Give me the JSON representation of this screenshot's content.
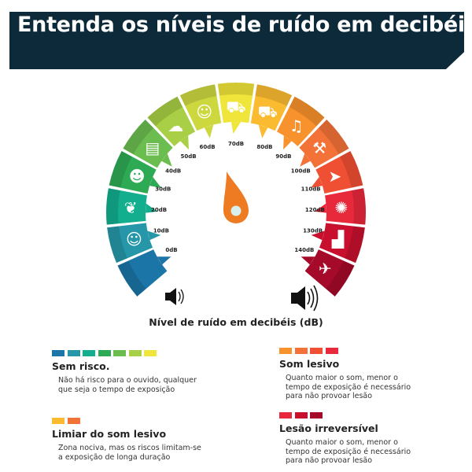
{
  "title": "Entenda os níveis de ruído em decibéis",
  "subtitle": "Nível de ruído em decibéis (dB)",
  "gauge": {
    "segments": [
      {
        "label": "0dB",
        "color": "#1b75a6",
        "icon": ""
      },
      {
        "label": "10dB",
        "color": "#2597a8",
        "icon": "whisper-icon"
      },
      {
        "label": "20dB",
        "color": "#12ae8e",
        "icon": "leaves-icon"
      },
      {
        "label": "30dB",
        "color": "#2eaa55",
        "icon": "conversation-icon"
      },
      {
        "label": "40dB",
        "color": "#6cbd4f",
        "icon": "radio-icon"
      },
      {
        "label": "50dB",
        "color": "#a8cf45",
        "icon": "rain-icon"
      },
      {
        "label": "60dB",
        "color": "#cdd83f",
        "icon": "people-talking-icon"
      },
      {
        "label": "70dB",
        "color": "#f0e53a",
        "icon": "traffic-icon"
      },
      {
        "label": "80dB",
        "color": "#fbbb30",
        "icon": "truck-icon"
      },
      {
        "label": "90dB",
        "color": "#f7922c",
        "icon": "band-icon"
      },
      {
        "label": "100dB",
        "color": "#f37238",
        "icon": "jackhammer-icon"
      },
      {
        "label": "110dB",
        "color": "#ef4f33",
        "icon": "race-car-icon"
      },
      {
        "label": "120dB",
        "color": "#e8283b",
        "icon": "fireworks-icon"
      },
      {
        "label": "130dB",
        "color": "#c8102e",
        "icon": "factory-icon"
      },
      {
        "label": "140dB",
        "color": "#a50a2a",
        "icon": "airplane-icon"
      }
    ],
    "needle_color": "#ee7a22"
  },
  "legend": [
    {
      "title": "Sem risco.",
      "desc": [
        "Não há risco para o ouvido, qualquer",
        "que seja o tempo de exposição"
      ],
      "colors": [
        "#1b75a6",
        "#2597a8",
        "#12ae8e",
        "#2eaa55",
        "#6cbd4f",
        "#a8cf45",
        "#f0e53a"
      ]
    },
    {
      "title": "Som lesivo",
      "desc": [
        "Quanto maior o som, menor o",
        "tempo de exposição é necessário",
        "para não provoar lesão"
      ],
      "colors": [
        "#f7922c",
        "#f37238",
        "#ef4f33",
        "#e8283b"
      ]
    },
    {
      "title": "Limiar do som lesivo",
      "desc": [
        "Zona nociva, mas os riscos limitam-se",
        "a exposição de longa duração"
      ],
      "colors": [
        "#fbbb30",
        "#f37238"
      ]
    },
    {
      "title": "Lesão irreversível",
      "desc": [
        "Quanto maior o som, menor o",
        "tempo de exposição é necessário",
        "para não provoar lesão"
      ],
      "colors": [
        "#e8283b",
        "#c8102e",
        "#a50a2a"
      ]
    }
  ]
}
